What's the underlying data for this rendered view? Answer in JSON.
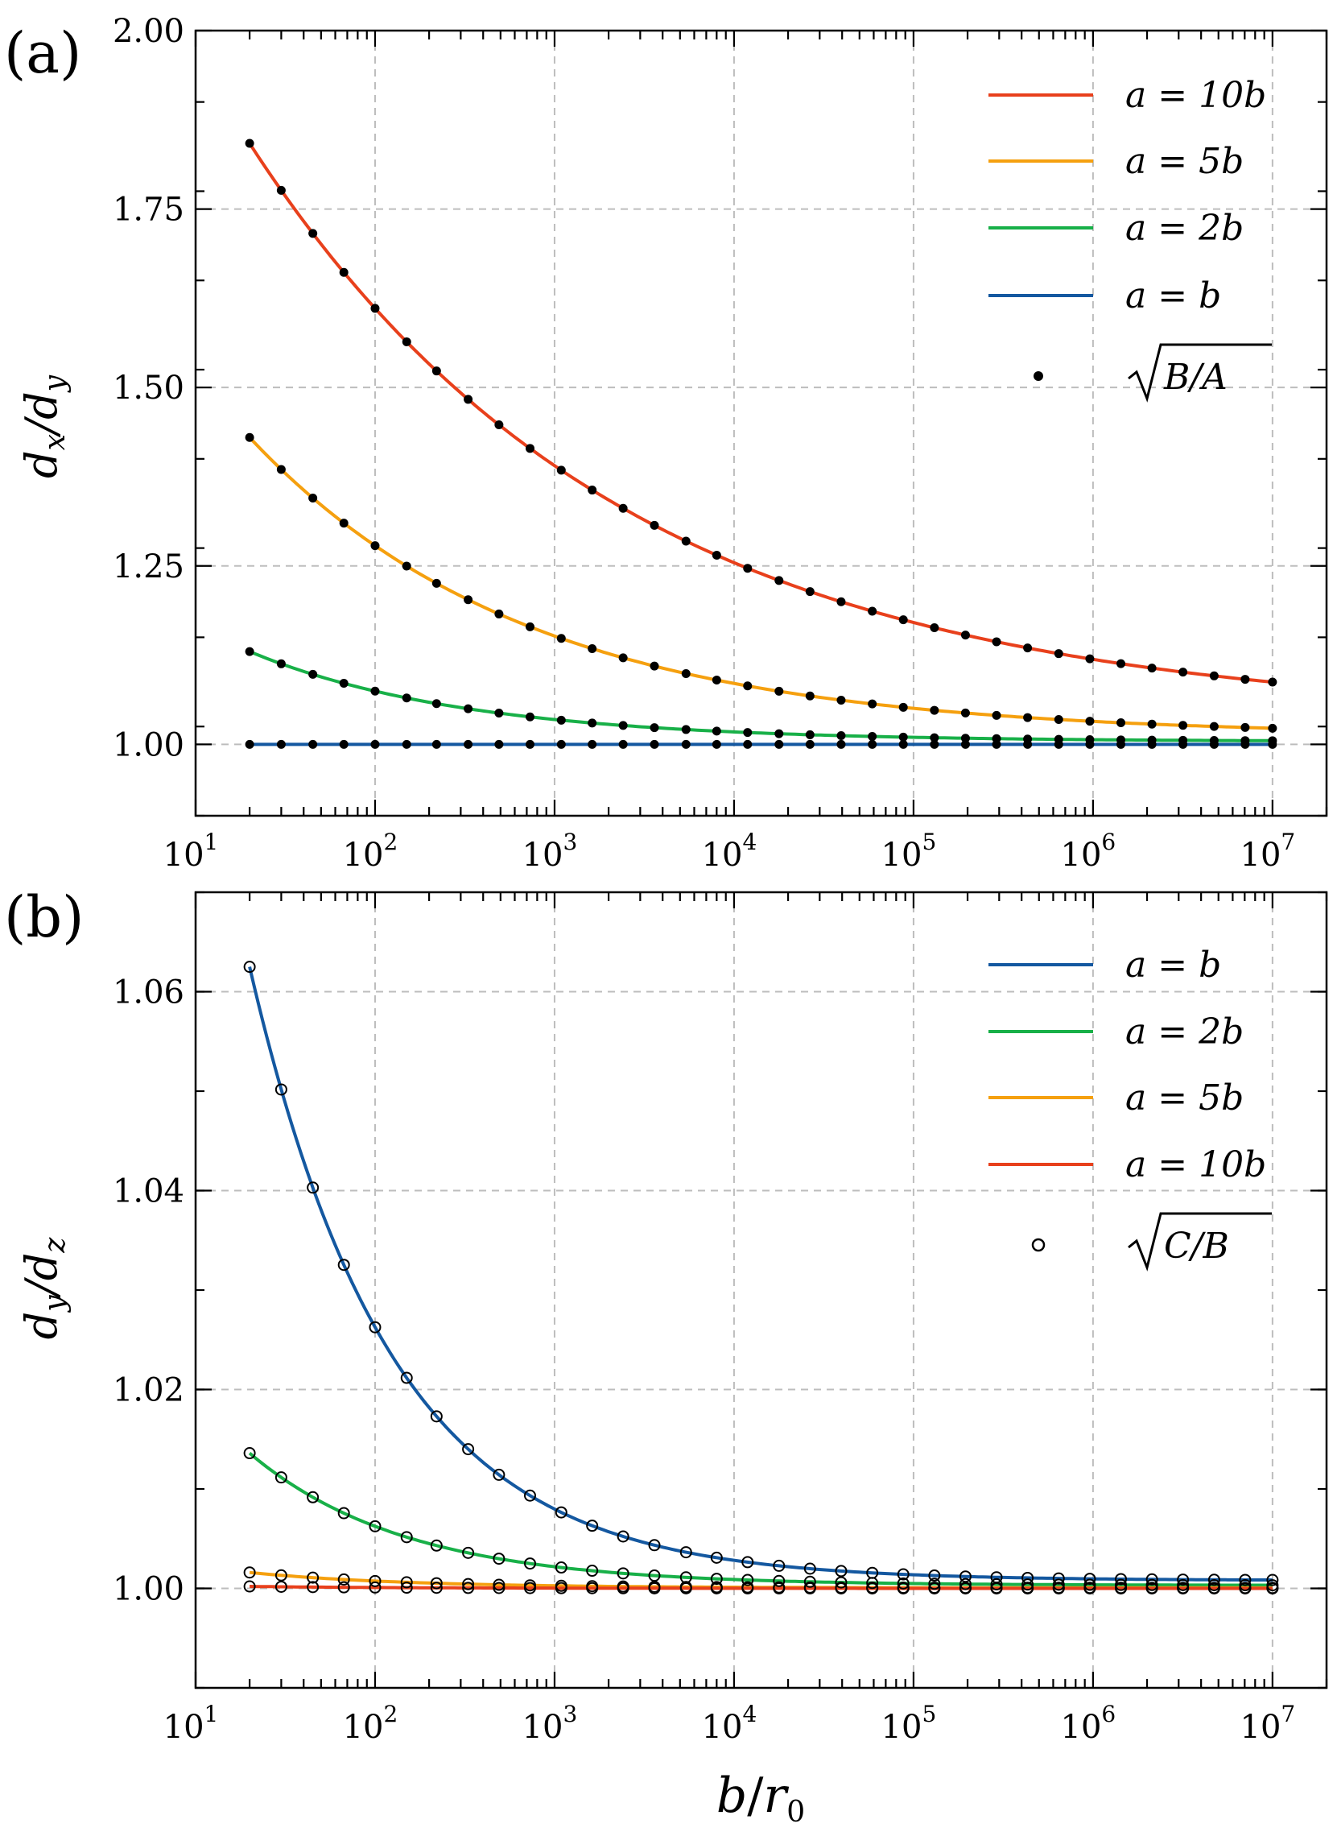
{
  "colors": {
    "a_10b": "#e8401c",
    "a_5b": "#f5a00f",
    "a_2b": "#18b048",
    "a_b": "#1458a0",
    "markers": "#000000"
  },
  "shared_x": {
    "label_num": "b",
    "label_den": "r",
    "label_den_sub": "0",
    "scale": "log",
    "xlim": [
      10,
      20000000
    ],
    "ticks": [
      {
        "base": "10",
        "exp": "1",
        "value": 10
      },
      {
        "base": "10",
        "exp": "2",
        "value": 100
      },
      {
        "base": "10",
        "exp": "3",
        "value": 1000
      },
      {
        "base": "10",
        "exp": "4",
        "value": 10000
      },
      {
        "base": "10",
        "exp": "5",
        "value": 100000
      },
      {
        "base": "10",
        "exp": "6",
        "value": 1000000
      },
      {
        "base": "10",
        "exp": "7",
        "value": 10000000
      }
    ]
  },
  "chart_data": [
    {
      "type": "line",
      "panel_label": "(a)",
      "ylabel": {
        "num": "d",
        "num_sub": "x",
        "den": "d",
        "den_sub": "y"
      },
      "ylim": [
        0.9,
        2.0
      ],
      "yticks": [
        "1.00",
        "1.25",
        "1.50",
        "1.75",
        "2.00"
      ],
      "grid": true,
      "legend_position": "top-right",
      "marker_style": "filled",
      "marker_label": "√B/A",
      "marker_label_inner": "B/A",
      "series": [
        {
          "name": "a = 10b",
          "lhs": "a",
          "op": "=",
          "rhs": "10b",
          "color_key": "a_10b",
          "end_value": 1.036,
          "start_value": 1.842,
          "decay": 0.21
        },
        {
          "name": "a = 5b",
          "lhs": "a",
          "op": "=",
          "rhs": "5b",
          "color_key": "a_5b",
          "end_value": 1.012,
          "start_value": 1.43,
          "decay": 0.28
        },
        {
          "name": "a = 2b",
          "lhs": "a",
          "op": "=",
          "rhs": "2b",
          "color_key": "a_2b",
          "end_value": 1.004,
          "start_value": 1.13,
          "decay": 0.36
        },
        {
          "name": "a = b",
          "lhs": "a",
          "op": "=",
          "rhs": "b",
          "color_key": "a_b",
          "end_value": 1.0,
          "start_value": 1.0,
          "decay": 0.5
        }
      ]
    },
    {
      "type": "line",
      "panel_label": "(b)",
      "ylabel": {
        "num": "d",
        "num_sub": "y",
        "den": "d",
        "den_sub": "z"
      },
      "ylim": [
        0.99,
        1.07
      ],
      "yticks": [
        "1.00",
        "1.02",
        "1.04",
        "1.06"
      ],
      "grid": true,
      "legend_position": "top-right",
      "marker_style": "open",
      "marker_label": "√C/B",
      "marker_label_inner": "C/B",
      "series": [
        {
          "name": "a = b",
          "lhs": "a",
          "op": "=",
          "rhs": "b",
          "color_key": "a_b",
          "end_value": 1.0008,
          "start_value": 1.0625,
          "decay": 0.55
        },
        {
          "name": "a = 2b",
          "lhs": "a",
          "op": "=",
          "rhs": "2b",
          "color_key": "a_2b",
          "end_value": 1.0003,
          "start_value": 1.0136,
          "decay": 0.5
        },
        {
          "name": "a = 5b",
          "lhs": "a",
          "op": "=",
          "rhs": "5b",
          "color_key": "a_5b",
          "end_value": 1.00005,
          "start_value": 1.0016,
          "decay": 0.5
        },
        {
          "name": "a = 10b",
          "lhs": "a",
          "op": "=",
          "rhs": "10b",
          "color_key": "a_10b",
          "end_value": 1.0,
          "start_value": 1.0002,
          "decay": 0.5
        }
      ]
    }
  ],
  "marker_x_values": [
    20,
    30,
    45,
    67,
    100,
    150,
    220,
    330,
    490,
    730,
    1090,
    1620,
    2410,
    3600,
    5400,
    8000,
    11900,
    17800,
    26500,
    39500,
    58900,
    87700,
    130700,
    194700,
    290000,
    432000,
    644000,
    960000,
    1430000,
    2130000,
    3170000,
    4730000,
    7040000,
    10000000
  ]
}
